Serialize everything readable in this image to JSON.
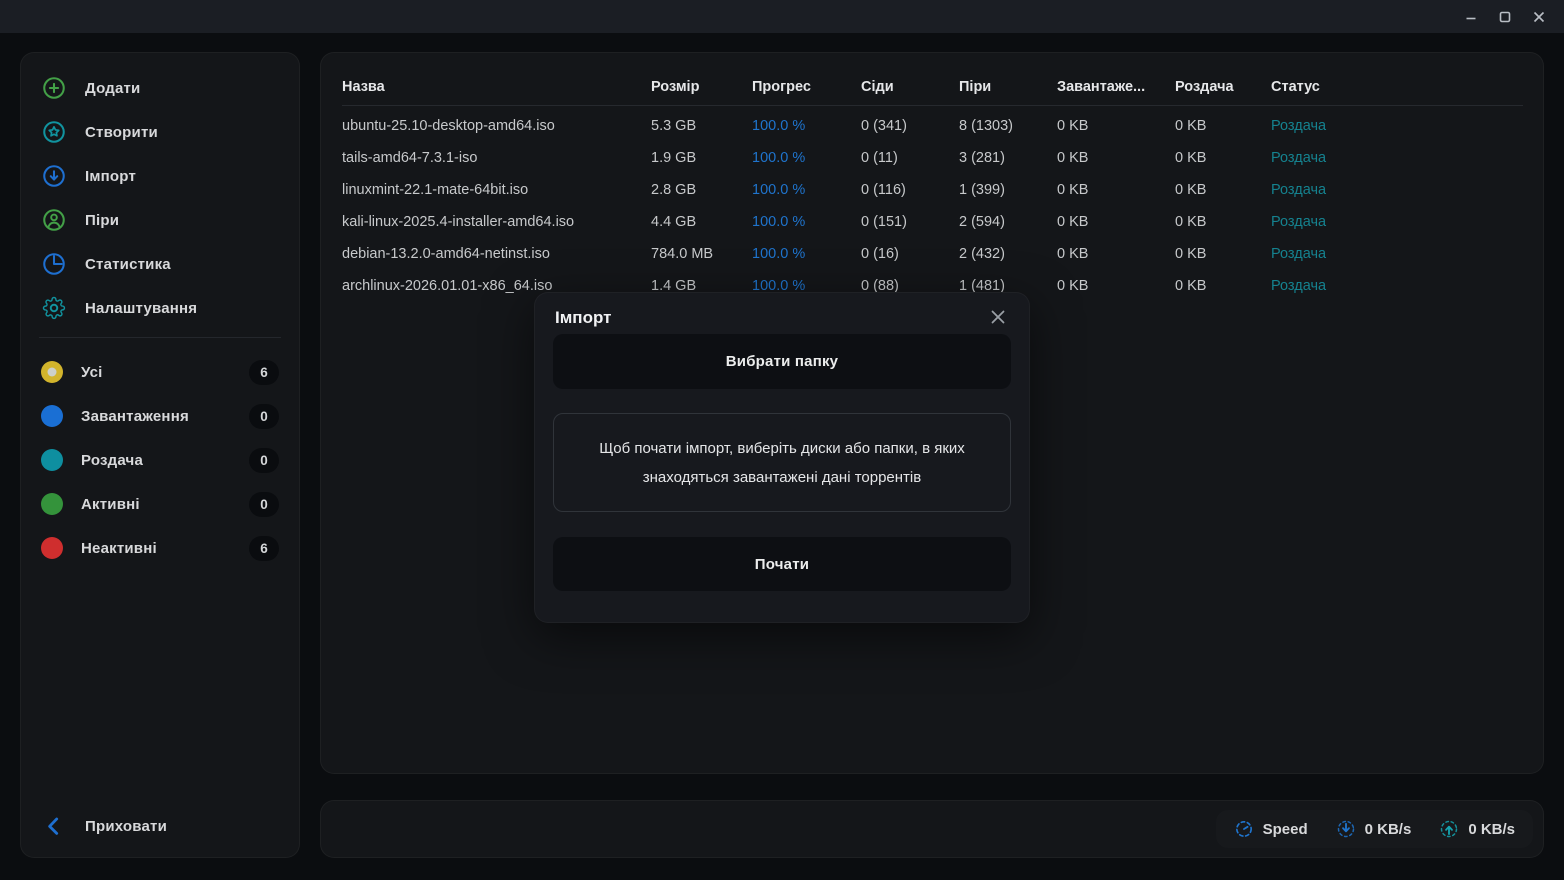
{
  "window": {
    "controls": [
      {
        "key": "minimize"
      },
      {
        "key": "maximize"
      },
      {
        "key": "close"
      }
    ]
  },
  "sidebar": {
    "menu": [
      {
        "key": "add",
        "label": "Додати",
        "icon": "plus-circle",
        "color": "#43a047"
      },
      {
        "key": "create",
        "label": "Створити",
        "icon": "star-circle",
        "color": "#11939f"
      },
      {
        "key": "import",
        "label": "Імпорт",
        "icon": "download-circle",
        "color": "#1e6fd0"
      },
      {
        "key": "peers",
        "label": "Піри",
        "icon": "user-circle",
        "color": "#43a047"
      },
      {
        "key": "statistics",
        "label": "Статистика",
        "icon": "pie-chart",
        "color": "#1e6fd0"
      },
      {
        "key": "settings",
        "label": "Налаштування",
        "icon": "gear",
        "color": "#11939f"
      }
    ],
    "filters": [
      {
        "key": "all",
        "label": "Усі",
        "count": "6",
        "color": "#d2b42c",
        "selected": true
      },
      {
        "key": "downloading",
        "label": "Завантаження",
        "count": "0",
        "color": "#1a6fd4",
        "selected": false
      },
      {
        "key": "seeding",
        "label": "Роздача",
        "count": "0",
        "color": "#0e8fa0",
        "selected": false
      },
      {
        "key": "active",
        "label": "Активні",
        "count": "0",
        "color": "#34933b",
        "selected": false
      },
      {
        "key": "inactive",
        "label": "Неактивні",
        "count": "6",
        "color": "#cf2e2e",
        "selected": false
      }
    ],
    "hide_label": "Приховати"
  },
  "table": {
    "columns": [
      "Назва",
      "Розмір",
      "Прогрес",
      "Сіди",
      "Піри",
      "Завантаже...",
      "Роздача",
      "Статус"
    ],
    "rows": [
      {
        "name": "ubuntu-25.10-desktop-amd64.iso",
        "size": "5.3 GB",
        "progress": "100.0 %",
        "seeds": "0 (341)",
        "peers": "8 (1303)",
        "downloaded": "0 KB",
        "uploaded": "0 KB",
        "status": "Роздача"
      },
      {
        "name": "tails-amd64-7.3.1-iso",
        "size": "1.9 GB",
        "progress": "100.0 %",
        "seeds": "0 (11)",
        "peers": "3 (281)",
        "downloaded": "0 KB",
        "uploaded": "0 KB",
        "status": "Роздача"
      },
      {
        "name": "linuxmint-22.1-mate-64bit.iso",
        "size": "2.8 GB",
        "progress": "100.0 %",
        "seeds": "0 (116)",
        "peers": "1 (399)",
        "downloaded": "0 KB",
        "uploaded": "0 KB",
        "status": "Роздача"
      },
      {
        "name": "kali-linux-2025.4-installer-amd64.iso",
        "size": "4.4 GB",
        "progress": "100.0 %",
        "seeds": "0 (151)",
        "peers": "2 (594)",
        "downloaded": "0 KB",
        "uploaded": "0 KB",
        "status": "Роздача"
      },
      {
        "name": "debian-13.2.0-amd64-netinst.iso",
        "size": "784.0 MB",
        "progress": "100.0 %",
        "seeds": "0 (16)",
        "peers": "2 (432)",
        "downloaded": "0 KB",
        "uploaded": "0 KB",
        "status": "Роздача"
      },
      {
        "name": "archlinux-2026.01.01-x86_64.iso",
        "size": "1.4 GB",
        "progress": "100.0 %",
        "seeds": "0 (88)",
        "peers": "1 (481)",
        "downloaded": "0 KB",
        "uploaded": "0 KB",
        "status": "Роздача"
      }
    ]
  },
  "modal": {
    "title": "Імпорт",
    "select_folder_button": "Вибрати папку",
    "info_text": "Щоб почати імпорт, виберіть диски або папки, в яких знаходяться завантажені дані торрентів",
    "start_button": "Почати"
  },
  "statusbar": {
    "speed_label": "Speed",
    "download_speed": "0 KB/s",
    "upload_speed": "0 KB/s"
  },
  "colors": {
    "accent_blue": "#1f74cd",
    "accent_teal": "#15828f",
    "accent_green": "#43a047",
    "accent_yellow": "#d2b42c",
    "accent_red": "#cf2e2e",
    "panel_bg": "#141619",
    "modal_bg": "#17191e",
    "titlebar_bg": "#1b1e24",
    "app_bg": "#0b0d10"
  }
}
